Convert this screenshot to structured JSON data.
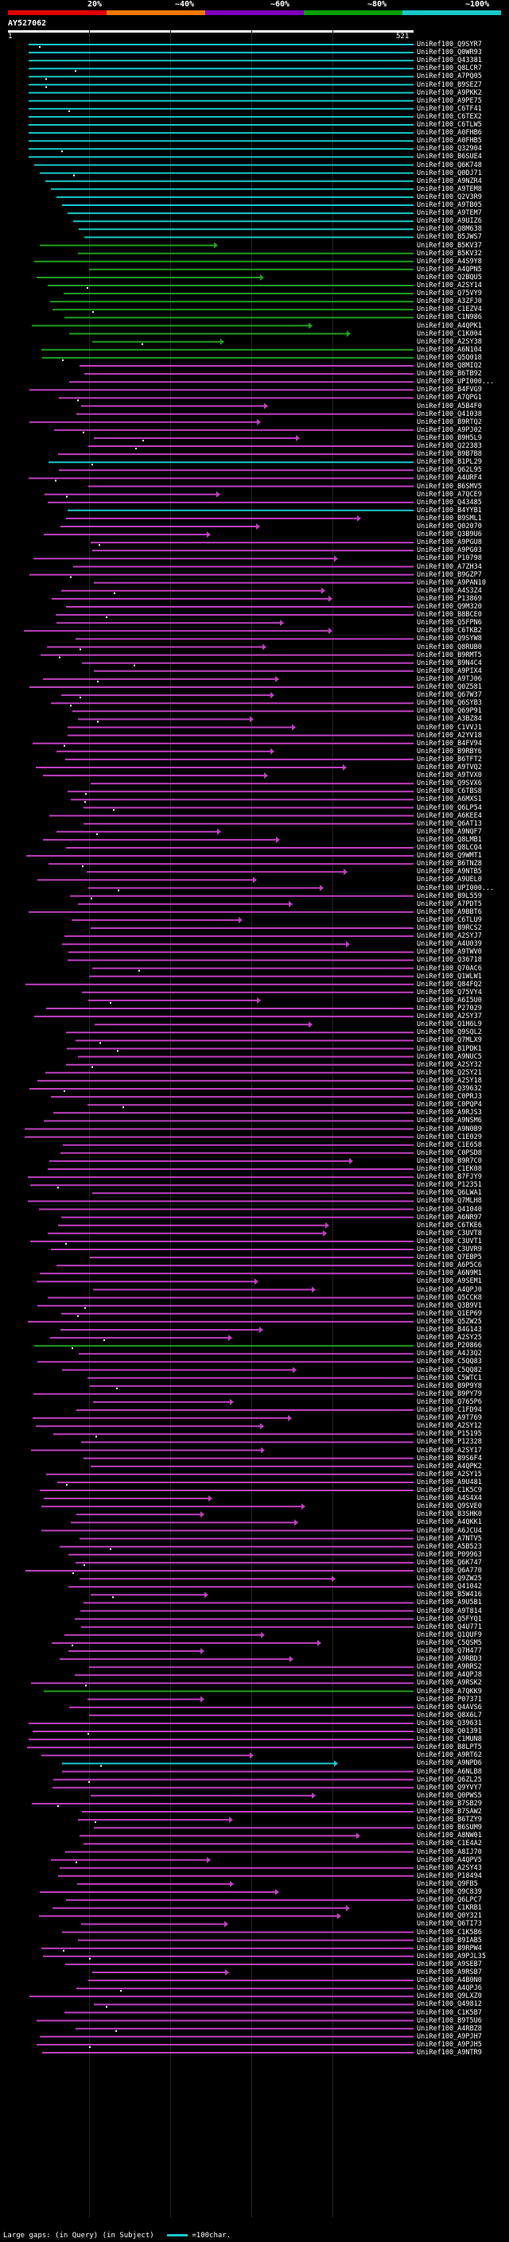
{
  "scale": {
    "colors": [
      "#e00000",
      "#f07800",
      "#8000c0",
      "#00a000",
      "#18c8c8"
    ],
    "ticks": [
      "20%",
      "~40%",
      "~60%",
      "~80%",
      "~100%"
    ]
  },
  "query": {
    "name": "AY527062",
    "start": "1",
    "end": "521"
  },
  "colors": {
    "cyan": "#18c8c8",
    "green": "#20a020",
    "magenta": "#c040c0"
  },
  "hits": [
    "UniRef100_Q9SYR7",
    "UniRef100_Q0WR93",
    "UniRef100_Q43381",
    "UniRef100_Q8LCR7",
    "UniRef100_A7PQ05",
    "UniRef100_B9SEZ7",
    "UniRef100_A9PKK2",
    "UniRef100_A9PE75",
    "UniRef100_C6TF41",
    "UniRef100_C6TEX2",
    "UniRef100_C6TLW5",
    "UniRef100_A0FHB6",
    "UniRef100_A0FHB5",
    "UniRef100_Q32904",
    "UniRef100_B6SUE4",
    "UniRef100_Q6K748",
    "UniRef100_Q0DJ71",
    "UniRef100_A9NZR4",
    "UniRef100_A9TEM8",
    "UniRef100_Q2V3R9",
    "UniRef100_A9TB05",
    "UniRef100_A9TEM7",
    "UniRef100_A9UIZ6",
    "UniRef100_Q8M638",
    "UniRef100_B5JWS7",
    "UniRef100_B5KV37",
    "UniRef100_B5KV32",
    "UniRef100_A4S9Y8",
    "UniRef100_A4QPN5",
    "UniRef100_Q2BQU5",
    "UniRef100_A2SY14",
    "UniRef100_Q75VY9",
    "UniRef100_A3ZFJ0",
    "UniRef100_C1EZV4",
    "UniRef100_C1N986",
    "UniRef100_A4QPK1",
    "UniRef100_C1K004",
    "UniRef100_A2SY38",
    "UniRef100_A6N104",
    "UniRef100_Q5Q018",
    "UniRef100_Q8MIQ2",
    "UniRef100_B6TB92",
    "UniRef100_UPI000...",
    "UniRef100_B4FVG9",
    "UniRef100_A7QPG1",
    "UniRef100_A5B4F0",
    "UniRef100_Q41038",
    "UniRef100_B9RTQ2",
    "UniRef100_A9PJ02",
    "UniRef100_B9H5L9",
    "UniRef100_Q22383",
    "UniRef100_B9B7B8",
    "UniRef100_B1PL29",
    "UniRef100_Q62L95",
    "UniRef100_A4URF4",
    "UniRef100_B6SMV5",
    "UniRef100_A7QCE9",
    "UniRef100_Q43485",
    "UniRef100_B4YYB1",
    "UniRef100_B9SML1",
    "UniRef100_Q02070",
    "UniRef100_Q3B9U6",
    "UniRef100_A9PGU8",
    "UniRef100_A9PG03",
    "UniRef100_P10798",
    "UniRef100_A7ZH34",
    "UniRef100_B9GZP7",
    "UniRef100_A9PAN10",
    "UniRef100_A4S3Z4",
    "UniRef100_P13869",
    "UniRef100_Q9M320",
    "UniRef100_B8BCE0",
    "UniRef100_Q5FPN6",
    "UniRef100_C6TKB2",
    "UniRef100_Q9SYW8",
    "UniRef100_Q8RUB0",
    "UniRef100_B9RMT5",
    "UniRef100_B9N4C4",
    "UniRef100_A9PIX4",
    "UniRef100_A9TJ06",
    "UniRef100_Q0Z581",
    "UniRef100_Q67W37",
    "UniRef100_Q6SYB3",
    "UniRef100_Q69P91",
    "UniRef100_A3BZ84",
    "UniRef100_C1VVJ1",
    "UniRef100_A2YV18",
    "UniRef100_B4FV94",
    "UniRef100_B9RBY6",
    "UniRef100_B6TFT2",
    "UniRef100_A9TVQ2",
    "UniRef100_A9TVX0",
    "UniRef100_Q9SVX6",
    "UniRef100_C6TBS8",
    "UniRef100_A6MXS1",
    "UniRef100_Q6LP54",
    "UniRef100_A6KEE4",
    "UniRef100_Q6AT13",
    "UniRef100_A9NQF7",
    "UniRef100_Q8LMB1",
    "UniRef100_Q8LCQ4",
    "UniRef100_Q9WMT1",
    "UniRef100_B6TNZ8",
    "UniRef100_A9NTB5",
    "UniRef100_A9UEL0",
    "UniRef100_UPI000...",
    "UniRef100_B9L559",
    "UniRef100_A7PDT5",
    "UniRef100_A9BBT6",
    "UniRef100_C6TLU9",
    "UniRef100_B9RCS2",
    "UniRef100_A2SYJ7",
    "UniRef100_A4U039",
    "UniRef100_A9TWV0",
    "UniRef100_Q36718",
    "UniRef100_Q70AC6",
    "UniRef100_Q1WLW1",
    "UniRef100_Q84FQ2",
    "UniRef100_Q75VY4",
    "UniRef100_A6I5U0",
    "UniRef100_P27029",
    "UniRef100_A2SY37",
    "UniRef100_Q1H6L9",
    "UniRef100_Q9SQL2",
    "UniRef100_Q7MLX9",
    "UniRef100_B1PDK1",
    "UniRef100_A9NUC5",
    "UniRef100_A2SY32",
    "UniRef100_Q2SY21",
    "UniRef100_A2SY18",
    "UniRef100_Q39632",
    "UniRef100_C0PRJ3",
    "UniRef100_C0PQP4",
    "UniRef100_A9RJS3",
    "UniRef100_A9NSM6",
    "UniRef100_A9N0B9",
    "UniRef100_C1E029",
    "UniRef100_C1E658",
    "UniRef100_C0PSD8",
    "UniRef100_B9R7C0",
    "UniRef100_C1EK08",
    "UniRef100_B7FJY9",
    "UniRef100_P12351",
    "UniRef100_Q6LWA1",
    "UniRef100_Q7MLH8",
    "UniRef100_Q41040",
    "UniRef100_A6NR97",
    "UniRef100_C6TKE6",
    "UniRef100_C3UVT8",
    "UniRef100_C3UVT1",
    "UniRef100_C3UVR9",
    "UniRef100_Q7EBP5",
    "UniRef100_A6P5C6",
    "UniRef100_A6N9M1",
    "UniRef100_A9SEM1",
    "UniRef100_A4QPJ0",
    "UniRef100_Q5CCK8",
    "UniRef100_Q3B9V1",
    "UniRef100_Q1EP69",
    "UniRef100_Q5ZW25",
    "UniRef100_B4G143",
    "UniRef100_A2SY25",
    "UniRef100_P20866",
    "UniRef100_A4J3Q2",
    "UniRef100_C5QQ83",
    "UniRef100_C5QQ82",
    "UniRef100_C5WTC1",
    "UniRef100_B9P9Y8",
    "UniRef100_B9PY79",
    "UniRef100_Q765P6",
    "UniRef100_C1FD94",
    "UniRef100_A9T769",
    "UniRef100_A2SY12",
    "UniRef100_P15195",
    "UniRef100_P12328",
    "UniRef100_A2SY17",
    "UniRef100_B9S6F4",
    "UniRef100_A4QPK2",
    "UniRef100_A2SY15",
    "UniRef100_A9U481",
    "UniRef100_C1K5C9",
    "UniRef100_A4S4X4",
    "UniRef100_Q9SVE0",
    "UniRef100_B3SHK0",
    "UniRef100_A4QKK1",
    "UniRef100_A6JCU4",
    "UniRef100_A7NTV5",
    "UniRef100_A5B523",
    "UniRef100_P09963",
    "UniRef100_Q6K747",
    "UniRef100_Q6A770",
    "UniRef100_Q9ZW25",
    "UniRef100_Q41042",
    "UniRef100_B5W416",
    "UniRef100_A9U5B1",
    "UniRef100_A9T814",
    "UniRef100_Q5FYQ1",
    "UniRef100_Q4U771",
    "UniRef100_Q1QUF9",
    "UniRef100_C5QSM5",
    "UniRef100_Q7H477",
    "UniRef100_A9RBD3",
    "UniRef100_A9RRS2",
    "UniRef100_A4QPJ8",
    "UniRef100_A9RSK2",
    "UniRef100_A7QKK9",
    "UniRef100_P07371",
    "UniRef100_Q4AVS6",
    "UniRef100_Q8X6L7",
    "UniRef100_Q39631",
    "UniRef100_Q01391",
    "UniRef100_C1MUN8",
    "UniRef100_B8LPT5",
    "UniRef100_A9RT62",
    "UniRef100_A9NPD6",
    "UniRef100_A6NLB8",
    "UniRef100_Q6ZL25",
    "UniRef100_Q9YVY7",
    "UniRef100_Q0PWS5",
    "UniRef100_B7SB29",
    "UniRef100_B7SAW2",
    "UniRef100_B6TZY9",
    "UniRef100_B6SUM9",
    "UniRef100_A8NW01",
    "UniRef100_C1E4A2",
    "UniRef100_A8IJ70",
    "UniRef100_A4QPV5",
    "UniRef100_A2SY43",
    "UniRef100_P18494",
    "UniRef100_Q9FB5",
    "UniRef100_Q9C839",
    "UniRef100_Q6LPC7",
    "UniRef100_C1KRB1",
    "UniRef100_Q0Y321",
    "UniRef100_Q6TI73",
    "UniRef100_C1K5B6",
    "UniRef100_B9IAB5",
    "UniRef100_B9RPW4",
    "UniRef100_A9PJL35",
    "UniRef100_A9SEB7",
    "UniRef100_A9RSB7",
    "UniRef100_A4B0N0",
    "UniRef100_A4QPJ6",
    "UniRef100_Q9LXZ0",
    "UniRef100_Q49812",
    "UniRef100_C1K5B7",
    "UniRef100_B9T5U6",
    "UniRef100_A4RBZ8",
    "UniRef100_A9PJH7",
    "UniRef100_A9PJH5",
    "UniRef100_A9NTR9"
  ],
  "footer": {
    "gaps_text": "Large gaps: ",
    "in_query": "(in Query)",
    "in_subject": "(in Subject)",
    "scale_label": "=100char."
  }
}
